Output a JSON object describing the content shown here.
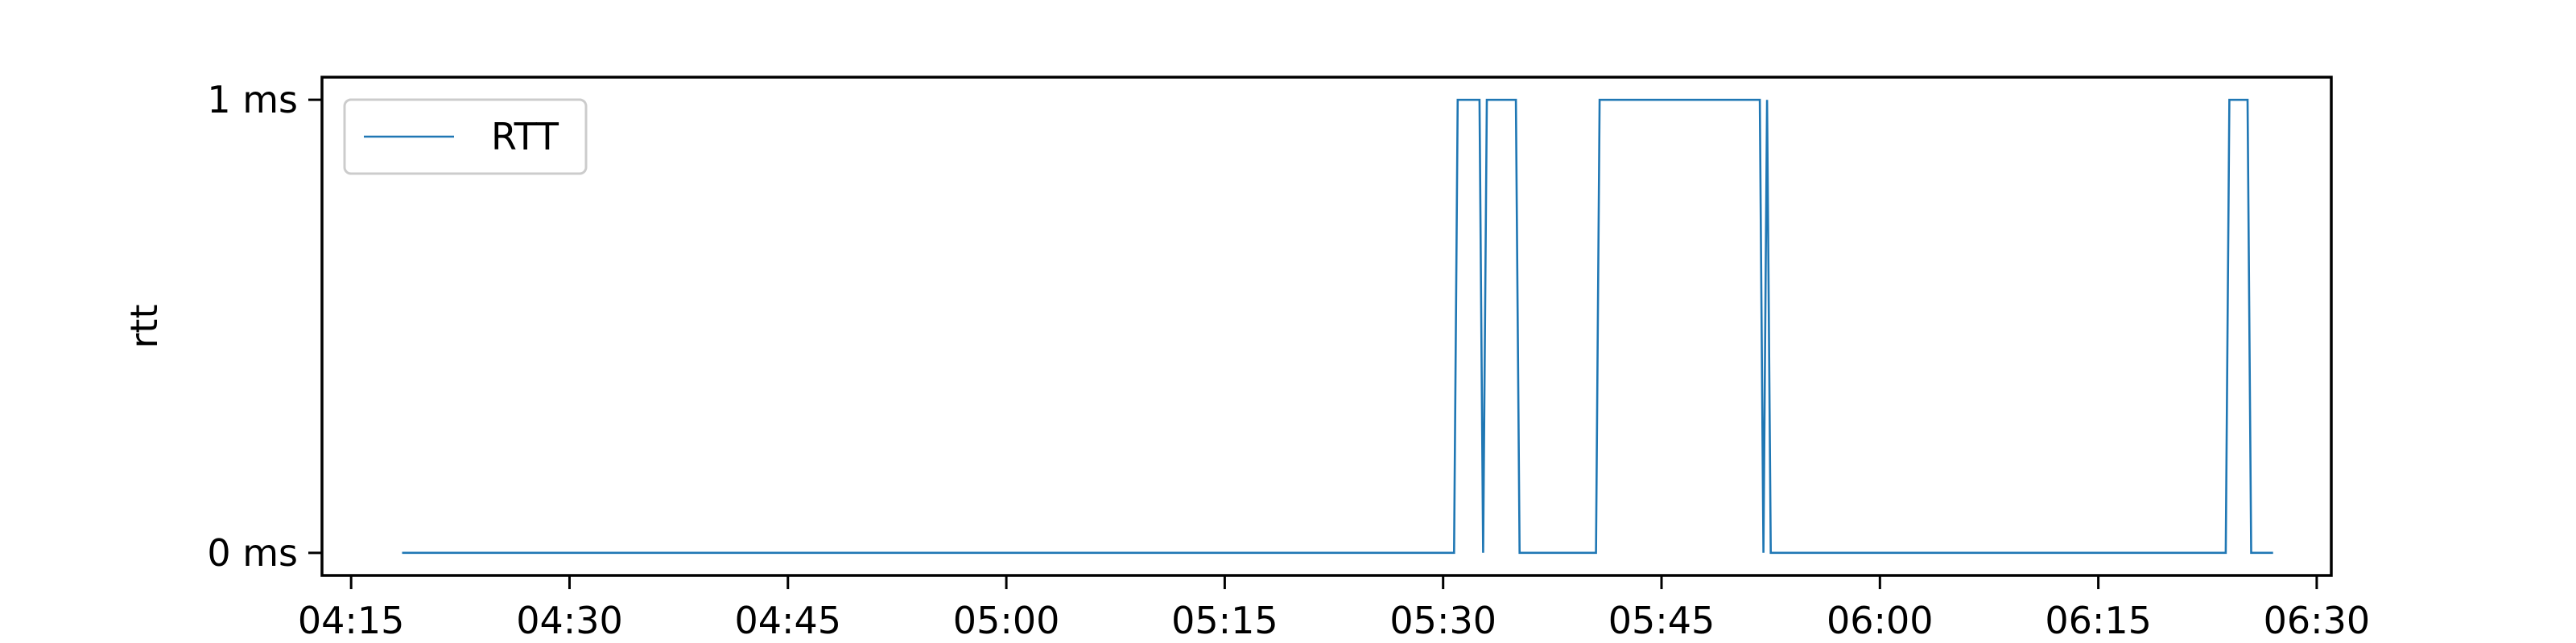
{
  "chart_data": {
    "type": "line",
    "title": "",
    "xlabel": "",
    "ylabel": "rtt",
    "x_type": "time",
    "xlim": [
      "04:13",
      "06:31"
    ],
    "ylim": [
      -0.05,
      1.05
    ],
    "x_ticks": [
      "04:15",
      "04:30",
      "04:45",
      "05:00",
      "05:15",
      "05:30",
      "05:45",
      "06:00",
      "06:15",
      "06:30"
    ],
    "y_ticks": [
      {
        "value": 0,
        "label": "0 ms"
      },
      {
        "value": 1,
        "label": "1 ms"
      }
    ],
    "grid": false,
    "legend": {
      "position": "top-left",
      "entries": [
        "RTT"
      ]
    },
    "series": [
      {
        "name": "RTT",
        "color": "#1f77b4",
        "points": [
          [
            "04:18:30",
            0
          ],
          [
            "05:30:45",
            0
          ],
          [
            "05:31:00",
            1
          ],
          [
            "05:32:30",
            1
          ],
          [
            "05:32:45",
            0
          ],
          [
            "05:33:00",
            1
          ],
          [
            "05:35:00",
            1
          ],
          [
            "05:35:15",
            0
          ],
          [
            "05:40:30",
            0
          ],
          [
            "05:40:45",
            1
          ],
          [
            "05:51:45",
            1
          ],
          [
            "05:52:00",
            0
          ],
          [
            "05:52:15",
            1
          ],
          [
            "05:52:30",
            0
          ],
          [
            "06:23:45",
            0
          ],
          [
            "06:24:00",
            1
          ],
          [
            "06:25:15",
            1
          ],
          [
            "06:25:30",
            0
          ],
          [
            "06:27:00",
            0
          ]
        ]
      }
    ]
  }
}
